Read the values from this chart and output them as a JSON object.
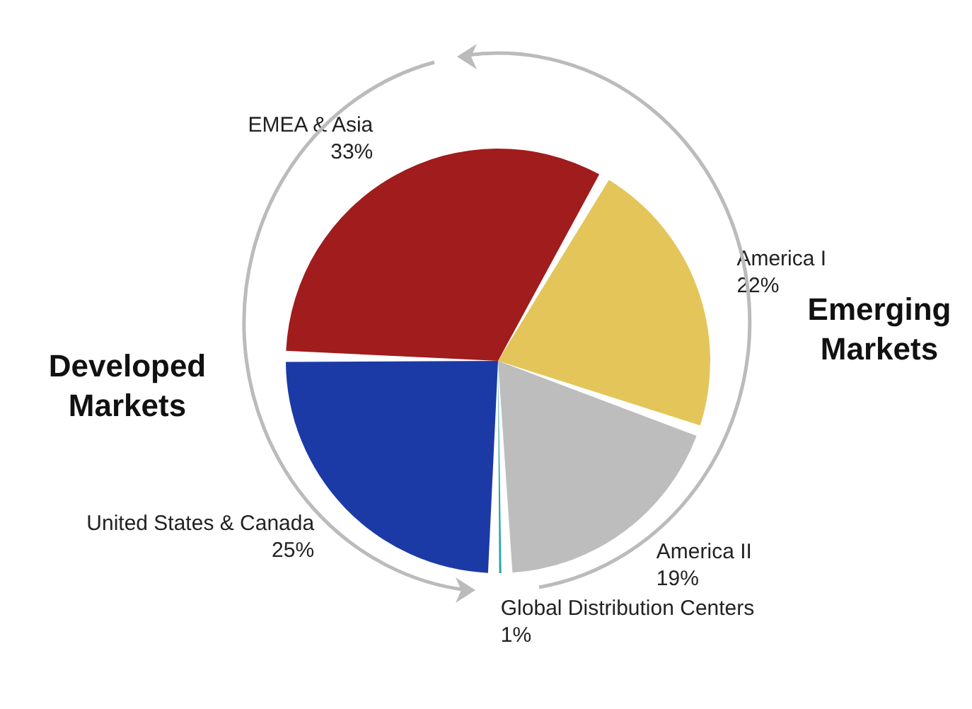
{
  "chart_data": {
    "type": "pie",
    "categories": [
      "America I",
      "America II",
      "Global Distribution Centers",
      "United States & Canada",
      "EMEA & Asia"
    ],
    "values": [
      22,
      19,
      1,
      25,
      33
    ],
    "value_labels": [
      "22%",
      "19%",
      "1%",
      "25%",
      "33%"
    ],
    "colors": [
      "#e3c55a",
      "#bdbdbd",
      "#2aa6a6",
      "#1c3aa6",
      "#a11c1c"
    ],
    "annotations": [
      "Emerging Markets",
      "Developed Markets"
    ],
    "legend": false
  }
}
